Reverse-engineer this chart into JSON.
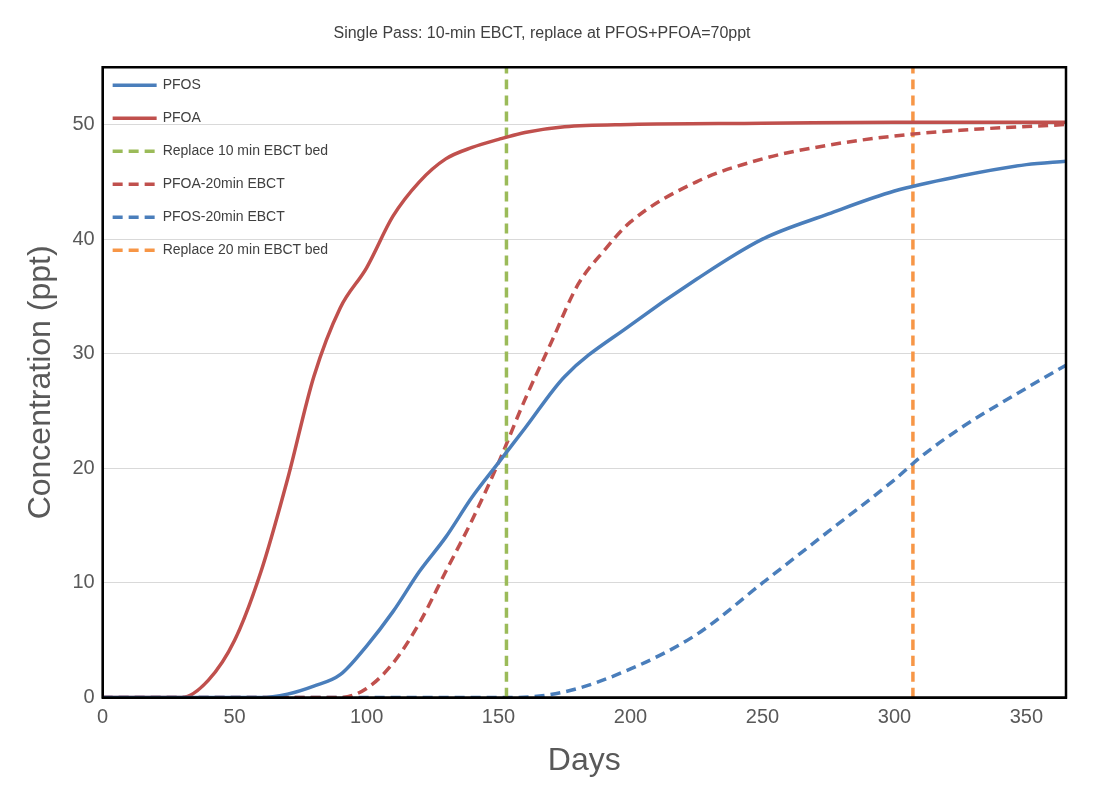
{
  "chart_data": {
    "type": "line",
    "title": "Single Pass: 10-min EBCT, replace at PFOS+PFOA=70ppt",
    "xlabel": "Days",
    "ylabel": "Concentration (ppt)",
    "xlim": [
      0,
      365
    ],
    "xticks": [
      0,
      50,
      100,
      150,
      200,
      250,
      300,
      350
    ],
    "ylim": [
      0,
      55
    ],
    "yticks": [
      0,
      10,
      20,
      30,
      40,
      50
    ],
    "grid": "y",
    "legend": "top left",
    "marker": "none",
    "series": [
      {
        "name": "PFOS",
        "color": "#4a7ebb",
        "line_style": "solid",
        "x": [
          0,
          60,
          70,
          80,
          90,
          100,
          110,
          120,
          130,
          140,
          150,
          160,
          175,
          200,
          225,
          250,
          275,
          300,
          325,
          350,
          365
        ],
        "values": [
          0,
          0,
          0.3,
          1,
          2,
          4.5,
          7.5,
          11,
          14,
          17.5,
          20.5,
          23.5,
          28,
          32.5,
          36.5,
          40,
          42.2,
          44.2,
          45.5,
          46.5,
          46.8
        ]
      },
      {
        "name": "PFOA",
        "color": "#c0504d",
        "line_style": "solid",
        "x": [
          0,
          30,
          40,
          50,
          60,
          70,
          80,
          90,
          100,
          110,
          120,
          130,
          140,
          150,
          160,
          175,
          200,
          250,
          300,
          365
        ],
        "values": [
          0,
          0,
          1.5,
          5,
          11,
          19,
          28,
          34,
          37.5,
          42,
          45,
          47,
          48,
          48.7,
          49.3,
          49.8,
          50,
          50.1,
          50.2,
          50.2
        ]
      },
      {
        "name": "Replace 10 min EBCT bed",
        "color": "#9bbb59",
        "line_style": "dashed",
        "x": [
          153,
          153
        ],
        "values": [
          0,
          55
        ]
      },
      {
        "name": "PFOA-20min EBCT",
        "color": "#c0504d",
        "line_style": "dashed",
        "x": [
          0,
          90,
          100,
          110,
          120,
          130,
          140,
          150,
          160,
          170,
          180,
          190,
          200,
          225,
          250,
          275,
          300,
          325,
          365
        ],
        "values": [
          0,
          0,
          0.8,
          3,
          6.5,
          11,
          15.5,
          20.5,
          26,
          31,
          36,
          39,
          41.5,
          45,
          47,
          48.2,
          49,
          49.5,
          50
        ]
      },
      {
        "name": "PFOS-20min EBCT",
        "color": "#4a7ebb",
        "line_style": "dashed",
        "x": [
          0,
          155,
          175,
          200,
          225,
          250,
          275,
          300,
          310,
          325,
          350,
          365
        ],
        "values": [
          0,
          0,
          0.5,
          2.5,
          5.5,
          10,
          14.5,
          19,
          21,
          23.5,
          27,
          29
        ]
      },
      {
        "name": "Replace 20 min EBCT bed",
        "color": "#f79646",
        "line_style": "dashed",
        "x": [
          307,
          307
        ],
        "values": [
          0,
          55
        ]
      }
    ]
  }
}
